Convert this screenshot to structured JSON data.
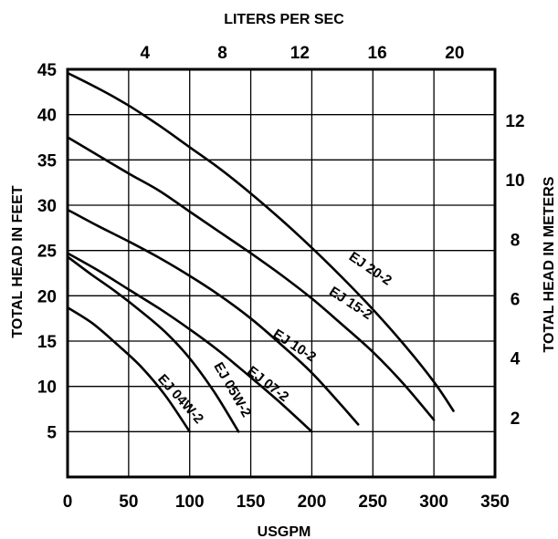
{
  "chart_data": {
    "type": "line",
    "title": "",
    "xlabel": "USGPM",
    "ylabel": "TOTAL HEAD IN FEET",
    "x2label": "LITERS PER SEC",
    "y2label": "TOTAL HEAD IN METERS",
    "xlim": [
      0,
      350
    ],
    "ylim": [
      0,
      45
    ],
    "x_ticks": [
      0,
      50,
      100,
      150,
      200,
      250,
      300,
      350
    ],
    "y_ticks": [
      5,
      10,
      15,
      20,
      25,
      30,
      35,
      40,
      45
    ],
    "x2_ticks": [
      4,
      8,
      12,
      16,
      20
    ],
    "y2_ticks": [
      2,
      4,
      6,
      8,
      10,
      12
    ],
    "grid": true,
    "legend": "none",
    "series": [
      {
        "name": "EJ 20-2",
        "x": [
          0,
          25,
          50,
          75,
          100,
          125,
          150,
          175,
          200,
          225,
          250,
          275,
          300,
          316
        ],
        "y": [
          44.6,
          42.9,
          41.0,
          38.8,
          36.4,
          34.0,
          31.3,
          28.4,
          25.3,
          22.0,
          18.5,
          14.7,
          10.5,
          7.3
        ]
      },
      {
        "name": "EJ 15-2",
        "x": [
          0,
          25,
          50,
          75,
          100,
          125,
          150,
          175,
          200,
          225,
          250,
          275,
          300
        ],
        "y": [
          37.5,
          35.5,
          33.5,
          31.6,
          29.3,
          27.0,
          24.7,
          22.3,
          19.7,
          16.8,
          13.8,
          10.3,
          6.3
        ]
      },
      {
        "name": "EJ 10-2",
        "x": [
          0,
          25,
          50,
          75,
          100,
          125,
          150,
          175,
          200,
          225,
          238
        ],
        "y": [
          29.5,
          27.7,
          26.0,
          24.2,
          22.2,
          20.0,
          17.5,
          14.6,
          11.5,
          7.8,
          5.8
        ]
      },
      {
        "name": "EJ 07-2",
        "x": [
          0,
          25,
          50,
          75,
          100,
          125,
          150,
          175,
          200
        ],
        "y": [
          24.7,
          22.8,
          20.7,
          18.6,
          16.3,
          13.8,
          11.0,
          8.1,
          5.0
        ]
      },
      {
        "name": "EJ 05W-2",
        "x": [
          0,
          20,
          40,
          60,
          80,
          100,
          120,
          140
        ],
        "y": [
          24.3,
          22.3,
          20.4,
          18.3,
          16.0,
          13.1,
          9.4,
          5.0
        ]
      },
      {
        "name": "EJ 04W-2",
        "x": [
          0,
          20,
          40,
          60,
          80,
          100
        ],
        "y": [
          18.7,
          17.0,
          14.7,
          12.2,
          9.0,
          5.0
        ]
      }
    ],
    "labels": [
      {
        "text": "EJ 20-2",
        "series": "EJ 20-2",
        "x": 246,
        "y": 22.6,
        "angle": 34
      },
      {
        "text": "EJ 15-2",
        "series": "EJ 15-2",
        "x": 230,
        "y": 18.8,
        "angle": 33
      },
      {
        "text": "EJ 10-2",
        "series": "EJ 10-2",
        "x": 184,
        "y": 14.1,
        "angle": 33
      },
      {
        "text": "EJ 07-2",
        "series": "EJ 07-2",
        "x": 162,
        "y": 9.9,
        "angle": 38
      },
      {
        "text": "EJ 05W-2",
        "series": "EJ 05W-2",
        "x": 132,
        "y": 9.4,
        "angle": 60
      },
      {
        "text": "EJ 04W-2",
        "series": "EJ 04W-2",
        "x": 90,
        "y": 8.3,
        "angle": 48
      }
    ]
  }
}
